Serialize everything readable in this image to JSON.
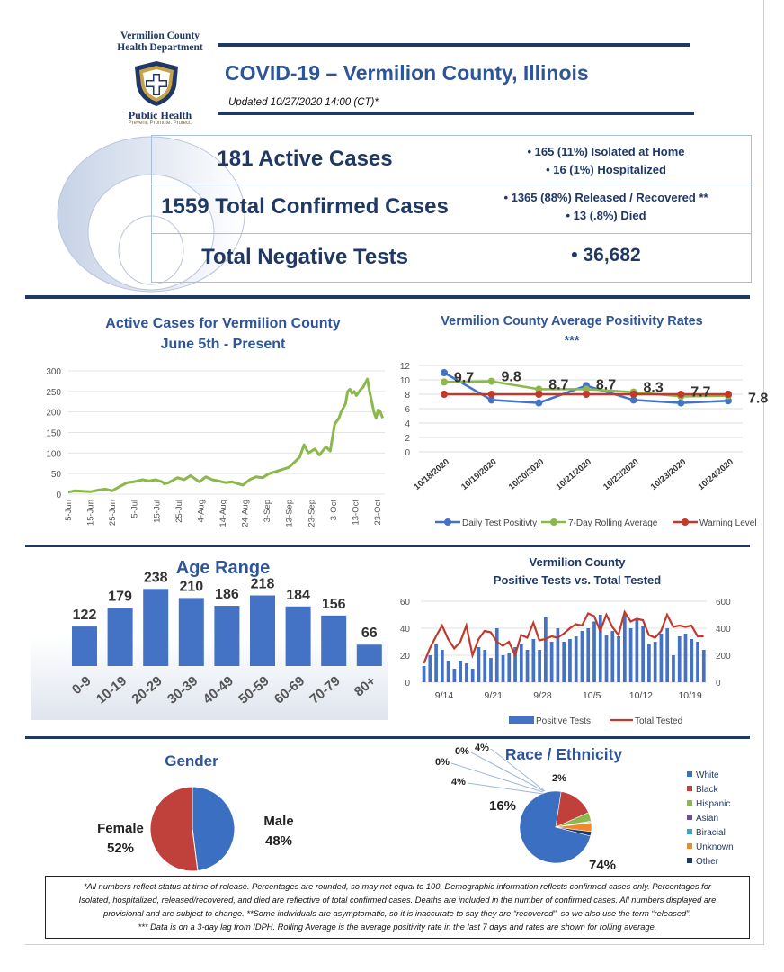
{
  "header": {
    "org_line1": "Vermilion County",
    "org_line2": "Health Department",
    "logo_caption": "Public Health",
    "logo_tagline": "Prevent. Promote. Protect.",
    "title": "COVID-19 – Vermilion County, Illinois",
    "updated": "Updated 10/27/2020 14:00 (CT)*"
  },
  "summary": {
    "active": {
      "label": "181 Active Cases",
      "detail1": "• 165 (11%) Isolated at Home",
      "detail2": "• 16 (1%) Hospitalized"
    },
    "total": {
      "label": "1559 Total Confirmed Cases",
      "detail1": "• 1365 (88%) Released / Recovered **",
      "detail2": "• 13 (.8%) Died"
    },
    "negative": {
      "label": "Total Negative Tests",
      "value": "• 36,682"
    }
  },
  "colors": {
    "navy": "#1f3864",
    "chart_blue": "#4472c4",
    "green": "#8ab84a",
    "red": "#c0392b",
    "pie_blue": "#3b6fc2",
    "pie_red": "#c0403c"
  },
  "chart_data": [
    {
      "type": "line",
      "title": "Active Cases for Vermilion County",
      "subtitle": "June 5th - Present",
      "x_ticks": [
        "5-Jun",
        "15-Jun",
        "25-Jun",
        "5-Jul",
        "15-Jul",
        "25-Jul",
        "4-Aug",
        "14-Aug",
        "24-Aug",
        "3-Sep",
        "13-Sep",
        "23-Sep",
        "3-Oct",
        "13-Oct",
        "23-Oct"
      ],
      "y_ticks": [
        "0",
        "50",
        "100",
        "150",
        "200",
        "250",
        "300"
      ],
      "ylim": [
        0,
        300
      ],
      "xlim": [
        0,
        145
      ],
      "series": [
        {
          "x": [
            0,
            3,
            6,
            10,
            14,
            17,
            20,
            24,
            27,
            30,
            34,
            37,
            40,
            43,
            44,
            46,
            50,
            53,
            56,
            60,
            63,
            66,
            69,
            72,
            75,
            78,
            80,
            83,
            86,
            89,
            92,
            95,
            98,
            101,
            104,
            106,
            108,
            110,
            113,
            115,
            118,
            120,
            122,
            124,
            125,
            127,
            128,
            129,
            130,
            131,
            132,
            134,
            135,
            136,
            137,
            138,
            140,
            141,
            142,
            143,
            144
          ],
          "y": [
            5,
            8,
            7,
            6,
            10,
            12,
            8,
            20,
            28,
            30,
            35,
            32,
            35,
            30,
            25,
            28,
            40,
            35,
            45,
            30,
            42,
            35,
            32,
            28,
            30,
            25,
            22,
            35,
            42,
            40,
            50,
            55,
            60,
            65,
            80,
            90,
            120,
            100,
            110,
            95,
            115,
            105,
            170,
            185,
            200,
            220,
            250,
            255,
            245,
            250,
            240,
            255,
            260,
            270,
            280,
            250,
            200,
            185,
            205,
            200,
            185
          ]
        }
      ]
    },
    {
      "type": "line",
      "title": "Vermilion County Average Positivity Rates ***",
      "categories": [
        "10/18/2020",
        "10/19/2020",
        "10/20/2020",
        "10/21/2020",
        "10/22/2020",
        "10/23/2020",
        "10/24/2020"
      ],
      "y_ticks": [
        "0",
        "2",
        "4",
        "6",
        "8",
        "10",
        "12"
      ],
      "ylim": [
        0,
        12
      ],
      "series": [
        {
          "name": "Daily Test Positivty",
          "values": [
            11.0,
            7.2,
            6.8,
            9.2,
            7.2,
            6.8,
            7.1
          ]
        },
        {
          "name": "7-Day Rolling Average",
          "values": [
            9.7,
            9.8,
            8.7,
            8.7,
            8.3,
            7.7,
            7.8
          ]
        },
        {
          "name": "Warning Level",
          "values": [
            8,
            8,
            8,
            8,
            8,
            8,
            8
          ]
        }
      ],
      "data_labels": [
        "9.7",
        "9.8",
        "8.7",
        "8.7",
        "8.3",
        "7.7",
        "7.8"
      ]
    },
    {
      "type": "bar",
      "title": "Age Range",
      "categories": [
        "0-9",
        "10-19",
        "20-29",
        "30-39",
        "40-49",
        "50-59",
        "60-69",
        "70-79",
        "80+"
      ],
      "values": [
        122,
        179,
        238,
        210,
        186,
        218,
        184,
        156,
        66
      ],
      "ylim": [
        0,
        250
      ]
    },
    {
      "type": "bar",
      "title": "Vermilion County",
      "subtitle": "Positive Tests vs. Total Tested",
      "x_ticks": [
        "9/14",
        "9/21",
        "9/28",
        "10/5",
        "10/12",
        "10/19"
      ],
      "left_ticks": [
        "0",
        "20",
        "40",
        "60"
      ],
      "right_ticks": [
        "0",
        "200",
        "400",
        "600"
      ],
      "ylim_left": [
        0,
        60
      ],
      "ylim_right": [
        0,
        600
      ],
      "series": [
        {
          "name": "Positive Tests",
          "values": [
            12,
            20,
            28,
            24,
            16,
            10,
            16,
            14,
            10,
            26,
            24,
            18,
            40,
            20,
            22,
            26,
            28,
            24,
            32,
            24,
            48,
            30,
            40,
            30,
            32,
            34,
            38,
            40,
            45,
            50,
            35,
            38,
            34,
            50,
            40,
            46,
            42,
            28,
            30,
            36,
            40,
            20,
            34,
            36,
            32,
            30,
            24
          ]
        },
        {
          "name": "Total Tested",
          "values": [
            140,
            250,
            340,
            420,
            320,
            250,
            300,
            420,
            200,
            320,
            380,
            370,
            300,
            270,
            300,
            200,
            350,
            330,
            440,
            310,
            320,
            340,
            330,
            360,
            400,
            430,
            420,
            510,
            490,
            380,
            500,
            410,
            350,
            520,
            450,
            470,
            460,
            350,
            330,
            380,
            500,
            410,
            420,
            410,
            420,
            340,
            340
          ]
        }
      ]
    },
    {
      "type": "pie",
      "title": "Gender",
      "labels": [
        "Male",
        "Female"
      ],
      "values": [
        48,
        52
      ],
      "value_labels": [
        "48%",
        "52%"
      ]
    },
    {
      "type": "pie",
      "title": "Race / Ethnicity",
      "labels": [
        "White",
        "Black",
        "Hispanic",
        "Asian",
        "Biracial",
        "Unknown",
        "Other"
      ],
      "values": [
        74,
        16,
        4,
        0,
        0,
        4,
        2
      ],
      "value_labels": [
        "74%",
        "16%",
        "4%",
        "0%",
        "0%",
        "4%",
        "2%"
      ]
    }
  ],
  "footnote": {
    "line1": "*All numbers reflect status at time of release.  Percentages are rounded, so may not equal to 100.   Demographic information reflects confirmed cases only.  Percentages for",
    "line2": "Isolated, hospitalized, released/recovered, and died are reflective of total confirmed cases.  Deaths are included in the number of confirmed cases.  All numbers displayed are",
    "line3": "provisional and are subject to change. **Some individuals are asymptomatic, so it is inaccurate to say they are “recovered”, so we also use the term “released”.",
    "line4": "*** Data is on a 3-day lag from IDPH.  Rolling Average is the average positivity rate in the last 7 days and rates are shown for rolling average."
  }
}
